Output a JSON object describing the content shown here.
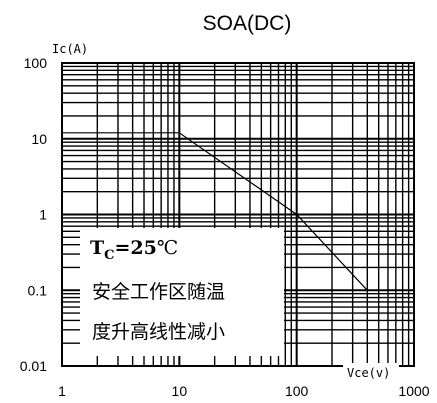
{
  "chart_data": {
    "type": "line",
    "title": "SOA(DC)",
    "xlabel": "Vce(v)",
    "ylabel": "Ic(A)",
    "x_scale": "log",
    "y_scale": "log",
    "xlim": [
      1,
      1000
    ],
    "ylim": [
      0.01,
      100
    ],
    "x_ticks": [
      "1",
      "10",
      "100",
      "1000"
    ],
    "y_ticks": [
      "100",
      "10",
      "1",
      "0.1",
      "0.01"
    ],
    "grid": true,
    "series": [
      {
        "x": [
          1,
          10,
          100,
          400
        ],
        "y": [
          12,
          12,
          1.0,
          0.1
        ]
      }
    ],
    "annotation": {
      "tc_prefix": "T",
      "tc_sub": "C",
      "tc_value": "=25",
      "tc_unit": "℃",
      "line1": "安全工作区随温",
      "line2": "度升高线性减小"
    }
  }
}
